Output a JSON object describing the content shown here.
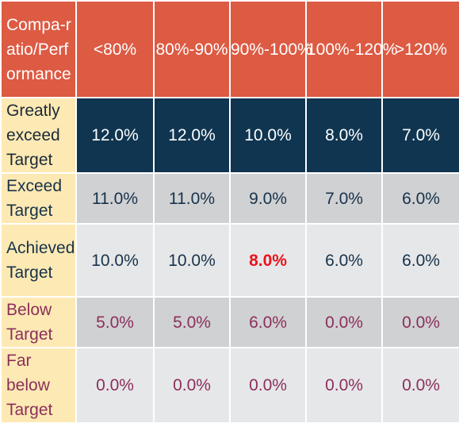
{
  "table": {
    "corner_label": "Compa-ratio/Performance",
    "columns": [
      "<80%",
      "80%-90%",
      "90%-100%",
      "100%-120%",
      ">120%"
    ],
    "rows": [
      {
        "label": "Greatly exceed Target",
        "values": [
          "12.0%",
          "12.0%",
          "10.0%",
          "8.0%",
          "7.0%"
        ]
      },
      {
        "label": "Exceed Target",
        "values": [
          "11.0%",
          "11.0%",
          "9.0%",
          "7.0%",
          "6.0%"
        ]
      },
      {
        "label": "Achieved Target",
        "values": [
          "10.0%",
          "10.0%",
          "8.0%",
          "6.0%",
          "6.0%"
        ]
      },
      {
        "label": "Below Target",
        "values": [
          "5.0%",
          "5.0%",
          "6.0%",
          "0.0%",
          "0.0%"
        ]
      },
      {
        "label": "Far below Target",
        "values": [
          "0.0%",
          "0.0%",
          "0.0%",
          "0.0%",
          "0.0%"
        ]
      }
    ],
    "highlight_color": "#e8141a"
  }
}
